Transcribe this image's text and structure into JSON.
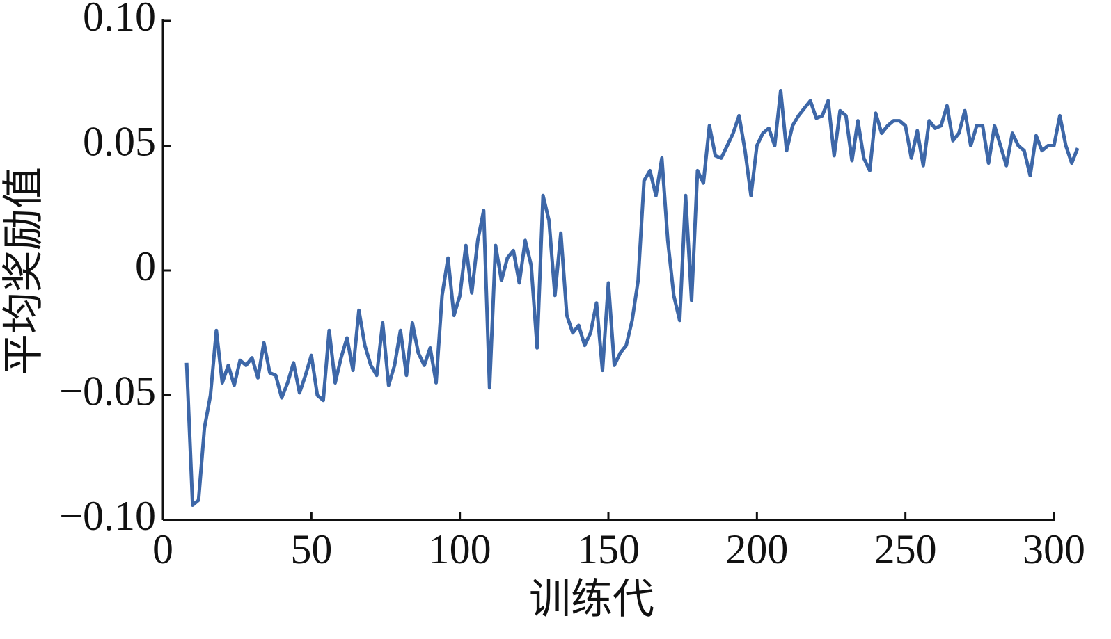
{
  "chart_data": {
    "type": "line",
    "xlabel": "训练代",
    "ylabel": "平均奖励值",
    "xlim": [
      0,
      300
    ],
    "ylim": [
      -0.1,
      0.1
    ],
    "xticks": [
      0,
      50,
      100,
      150,
      200,
      250,
      300
    ],
    "yticks": [
      {
        "value": -0.1,
        "label": "−0.10"
      },
      {
        "value": -0.05,
        "label": "−0.05"
      },
      0,
      0.05,
      {
        "value": 0.1,
        "label": "0.10"
      }
    ],
    "grid": false,
    "x": [
      8,
      10,
      12,
      14,
      16,
      18,
      20,
      22,
      24,
      26,
      28,
      30,
      32,
      34,
      36,
      38,
      40,
      42,
      44,
      46,
      48,
      50,
      52,
      54,
      56,
      58,
      60,
      62,
      64,
      66,
      68,
      70,
      72,
      74,
      76,
      78,
      80,
      82,
      84,
      86,
      88,
      90,
      92,
      94,
      96,
      98,
      100,
      102,
      104,
      106,
      108,
      110,
      112,
      114,
      116,
      118,
      120,
      122,
      124,
      126,
      128,
      130,
      132,
      134,
      136,
      138,
      140,
      142,
      144,
      146,
      148,
      150,
      152,
      154,
      156,
      158,
      160,
      162,
      164,
      166,
      168,
      170,
      172,
      174,
      176,
      178,
      180,
      182,
      184,
      186,
      188,
      190,
      192,
      194,
      196,
      198,
      200,
      202,
      204,
      206,
      208,
      210,
      212,
      214,
      216,
      218,
      220,
      222,
      224,
      226,
      228,
      230,
      232,
      234,
      236,
      238,
      240,
      242,
      244,
      246,
      248,
      250,
      252,
      254,
      256,
      258,
      260,
      262,
      264,
      266,
      268,
      270,
      272,
      274,
      276,
      278,
      280,
      282,
      284,
      286,
      288,
      290,
      292,
      294,
      296,
      298,
      300,
      302,
      304,
      306,
      308
    ],
    "series": [
      {
        "name": "平均奖励值",
        "color": "#3d67a8",
        "values": [
          -0.037,
          -0.094,
          -0.092,
          -0.063,
          -0.05,
          -0.024,
          -0.045,
          -0.038,
          -0.046,
          -0.036,
          -0.038,
          -0.035,
          -0.043,
          -0.029,
          -0.041,
          -0.042,
          -0.051,
          -0.045,
          -0.037,
          -0.049,
          -0.042,
          -0.034,
          -0.05,
          -0.052,
          -0.024,
          -0.045,
          -0.035,
          -0.027,
          -0.04,
          -0.016,
          -0.03,
          -0.038,
          -0.042,
          -0.021,
          -0.046,
          -0.038,
          -0.024,
          -0.042,
          -0.021,
          -0.033,
          -0.038,
          -0.031,
          -0.045,
          -0.01,
          0.005,
          -0.018,
          -0.01,
          0.01,
          -0.009,
          0.012,
          0.024,
          -0.047,
          0.01,
          -0.004,
          0.005,
          0.008,
          -0.005,
          0.012,
          0.002,
          -0.031,
          0.03,
          0.02,
          -0.01,
          0.015,
          -0.018,
          -0.025,
          -0.022,
          -0.03,
          -0.025,
          -0.013,
          -0.04,
          -0.005,
          -0.038,
          -0.033,
          -0.03,
          -0.02,
          -0.004,
          0.036,
          0.04,
          0.03,
          0.045,
          0.012,
          -0.01,
          -0.02,
          0.03,
          -0.012,
          0.04,
          0.035,
          0.058,
          0.046,
          0.045,
          0.05,
          0.055,
          0.062,
          0.048,
          0.03,
          0.05,
          0.055,
          0.057,
          0.05,
          0.072,
          0.048,
          0.058,
          0.062,
          0.065,
          0.068,
          0.061,
          0.062,
          0.068,
          0.046,
          0.064,
          0.062,
          0.044,
          0.06,
          0.045,
          0.04,
          0.063,
          0.055,
          0.058,
          0.06,
          0.06,
          0.058,
          0.045,
          0.056,
          0.042,
          0.06,
          0.057,
          0.058,
          0.066,
          0.052,
          0.055,
          0.064,
          0.05,
          0.058,
          0.058,
          0.043,
          0.058,
          0.05,
          0.042,
          0.055,
          0.05,
          0.048,
          0.038,
          0.054,
          0.048,
          0.05,
          0.05,
          0.062,
          0.05,
          0.043,
          0.049
        ]
      }
    ]
  }
}
